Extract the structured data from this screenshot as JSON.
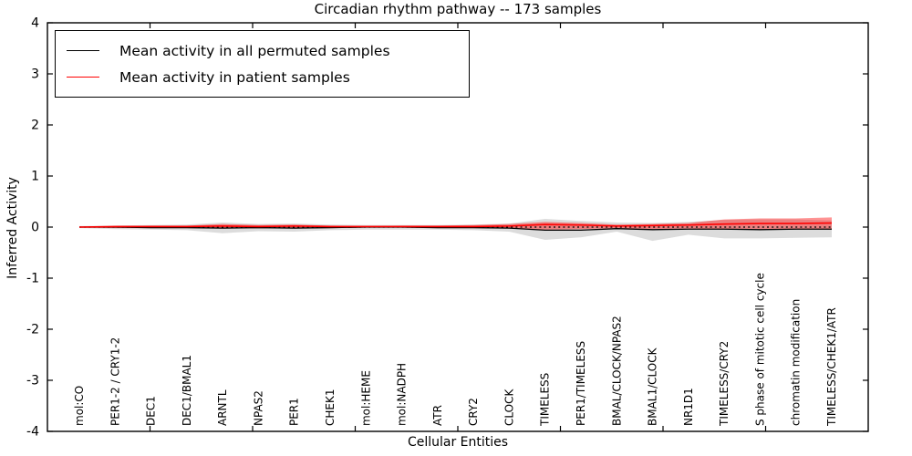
{
  "title": "Circadian rhythm pathway -- 173 samples",
  "ylabel": "Inferred Activity",
  "xlabel": "Cellular Entities",
  "legend": {
    "items": [
      {
        "label": "Mean activity in all permuted samples",
        "color": "#000000"
      },
      {
        "label": "Mean activity in patient samples",
        "color": "#ff0000"
      }
    ]
  },
  "chart_data": {
    "type": "line",
    "title": "Circadian rhythm pathway -- 173 samples",
    "xlabel": "Cellular Entities",
    "ylabel": "Inferred Activity",
    "ylim": [
      -4,
      4
    ],
    "yticks": [
      -4,
      -3,
      -2,
      -1,
      0,
      1,
      2,
      3,
      4
    ],
    "grid": false,
    "legend_position": "upper left",
    "zero_line": true,
    "categories": [
      "mol:CO",
      "PER1-2 / CRY1-2",
      "DEC1",
      "DEC1/BMAL1",
      "ARNTL",
      "NPAS2",
      "PER1",
      "CHEK1",
      "mol:HEME",
      "mol:NADPH",
      "ATR",
      "CRY2",
      "CLOCK",
      "TIMELESS",
      "PER1/TIMELESS",
      "BMAL/CLOCK/NPAS2",
      "BMAL1/CLOCK",
      "NR1D1",
      "TIMELESS/CRY2",
      "S phase of mitotic cell cycle",
      "chromatin modification",
      "TIMELESS/CHEK1/ATR"
    ],
    "series": [
      {
        "name": "Mean activity in all permuted samples",
        "color": "#000000",
        "values": [
          0,
          0,
          -0.01,
          -0.01,
          -0.02,
          -0.01,
          -0.02,
          -0.01,
          0,
          0,
          -0.01,
          -0.01,
          -0.02,
          -0.06,
          -0.06,
          -0.03,
          -0.05,
          -0.04,
          -0.04,
          -0.05,
          -0.04,
          -0.04
        ]
      },
      {
        "name": "Mean activity in patient samples",
        "color": "#ff0000",
        "values": [
          0,
          0.01,
          0.01,
          0.01,
          0.02,
          0.01,
          0.02,
          0.01,
          0.01,
          0.01,
          0.01,
          0.01,
          0.02,
          0.05,
          0.04,
          0.02,
          0.03,
          0.04,
          0.06,
          0.07,
          0.07,
          0.08
        ]
      }
    ],
    "bands": [
      {
        "name": "permuted-std-band",
        "color": "rgba(128,128,128,0.28)",
        "upper": [
          0.02,
          0.03,
          0.04,
          0.05,
          0.09,
          0.06,
          0.07,
          0.05,
          0.04,
          0.04,
          0.04,
          0.05,
          0.07,
          0.16,
          0.12,
          0.09,
          0.08,
          0.1,
          0.14,
          0.15,
          0.15,
          0.13
        ],
        "lower": [
          -0.02,
          -0.04,
          -0.05,
          -0.06,
          -0.12,
          -0.08,
          -0.09,
          -0.06,
          -0.05,
          -0.05,
          -0.05,
          -0.06,
          -0.09,
          -0.25,
          -0.2,
          -0.09,
          -0.27,
          -0.15,
          -0.22,
          -0.22,
          -0.21,
          -0.2
        ]
      },
      {
        "name": "patient-std-band",
        "color": "rgba(255,0,0,0.42)",
        "upper": [
          0.01,
          0.02,
          0.03,
          0.03,
          0.06,
          0.04,
          0.05,
          0.03,
          0.02,
          0.03,
          0.03,
          0.04,
          0.06,
          0.1,
          0.08,
          0.05,
          0.06,
          0.08,
          0.15,
          0.17,
          0.17,
          0.19
        ],
        "lower": [
          -0.01,
          -0.02,
          -0.02,
          -0.02,
          -0.03,
          -0.02,
          -0.03,
          -0.02,
          -0.01,
          -0.01,
          -0.02,
          -0.02,
          -0.03,
          -0.05,
          -0.04,
          -0.02,
          -0.04,
          -0.03,
          -0.05,
          -0.05,
          -0.05,
          -0.05
        ]
      }
    ]
  }
}
